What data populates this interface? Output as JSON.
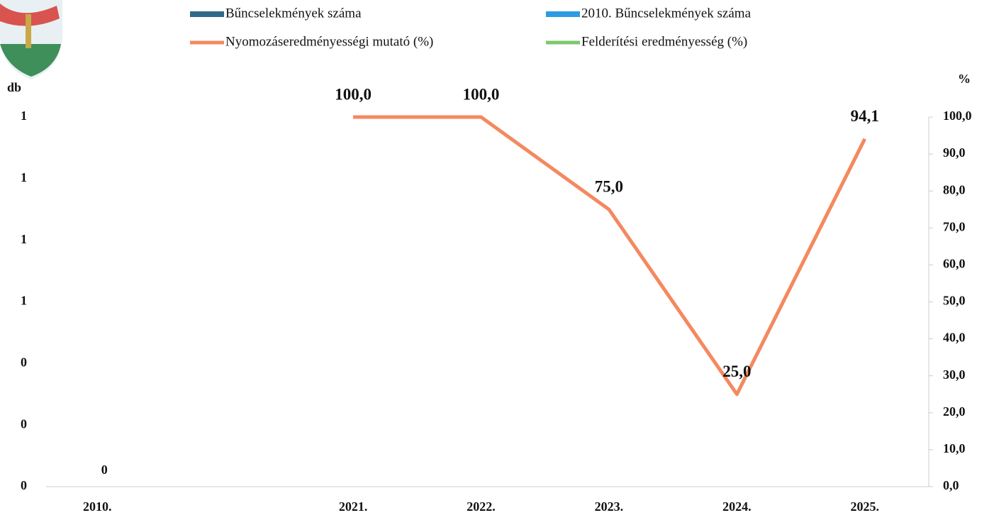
{
  "chart_data": {
    "type": "bar-line",
    "y_label": "db",
    "y2_label": "%",
    "categories": [
      "2010.",
      null,
      "2021.",
      "2022.",
      "2023.",
      "2024.",
      "2025."
    ],
    "series": [
      {
        "name": "Bűncselekmények száma",
        "type": "bar",
        "color": "#2f6b86",
        "values": [
          0,
          null,
          null,
          null,
          null,
          null,
          null
        ]
      },
      {
        "name": "2010. Bűncselekmények száma",
        "type": "bar",
        "color": "#2e9be0",
        "values": [
          null,
          null,
          null,
          null,
          null,
          null,
          null
        ]
      },
      {
        "name": "Nyomozáseredményességi mutató (%)",
        "type": "line",
        "axis": "y2",
        "color": "#f4895f",
        "values": [
          null,
          null,
          100,
          100,
          75,
          25,
          94.1
        ],
        "value_labels": [
          null,
          null,
          "100,0",
          "100,0",
          "75,0",
          "25,0",
          "94,1"
        ]
      },
      {
        "name": "Felderítési eredményesség (%)",
        "type": "line",
        "axis": "y2",
        "color": "#7cc86a",
        "values": [
          null,
          null,
          null,
          null,
          null,
          null,
          null
        ]
      }
    ],
    "ylim": [
      0,
      1.2
    ],
    "yticks": [
      {
        "value": 0,
        "label": "0"
      },
      {
        "value": 0.2,
        "label": "0"
      },
      {
        "value": 0.4,
        "label": "0"
      },
      {
        "value": 0.6,
        "label": "1"
      },
      {
        "value": 0.8,
        "label": "1"
      },
      {
        "value": 1.0,
        "label": "1"
      },
      {
        "value": 1.2,
        "label": "1"
      }
    ],
    "y2lim": [
      0,
      100
    ],
    "y2ticks": [
      {
        "value": 0,
        "label": "0,0"
      },
      {
        "value": 10,
        "label": "10,0"
      },
      {
        "value": 20,
        "label": "20,0"
      },
      {
        "value": 30,
        "label": "30,0"
      },
      {
        "value": 40,
        "label": "40,0"
      },
      {
        "value": 50,
        "label": "50,0"
      },
      {
        "value": 60,
        "label": "60,0"
      },
      {
        "value": 70,
        "label": "70,0"
      },
      {
        "value": 80,
        "label": "80,0"
      },
      {
        "value": 90,
        "label": "90,0"
      },
      {
        "value": 100,
        "label": "100,0"
      }
    ]
  }
}
